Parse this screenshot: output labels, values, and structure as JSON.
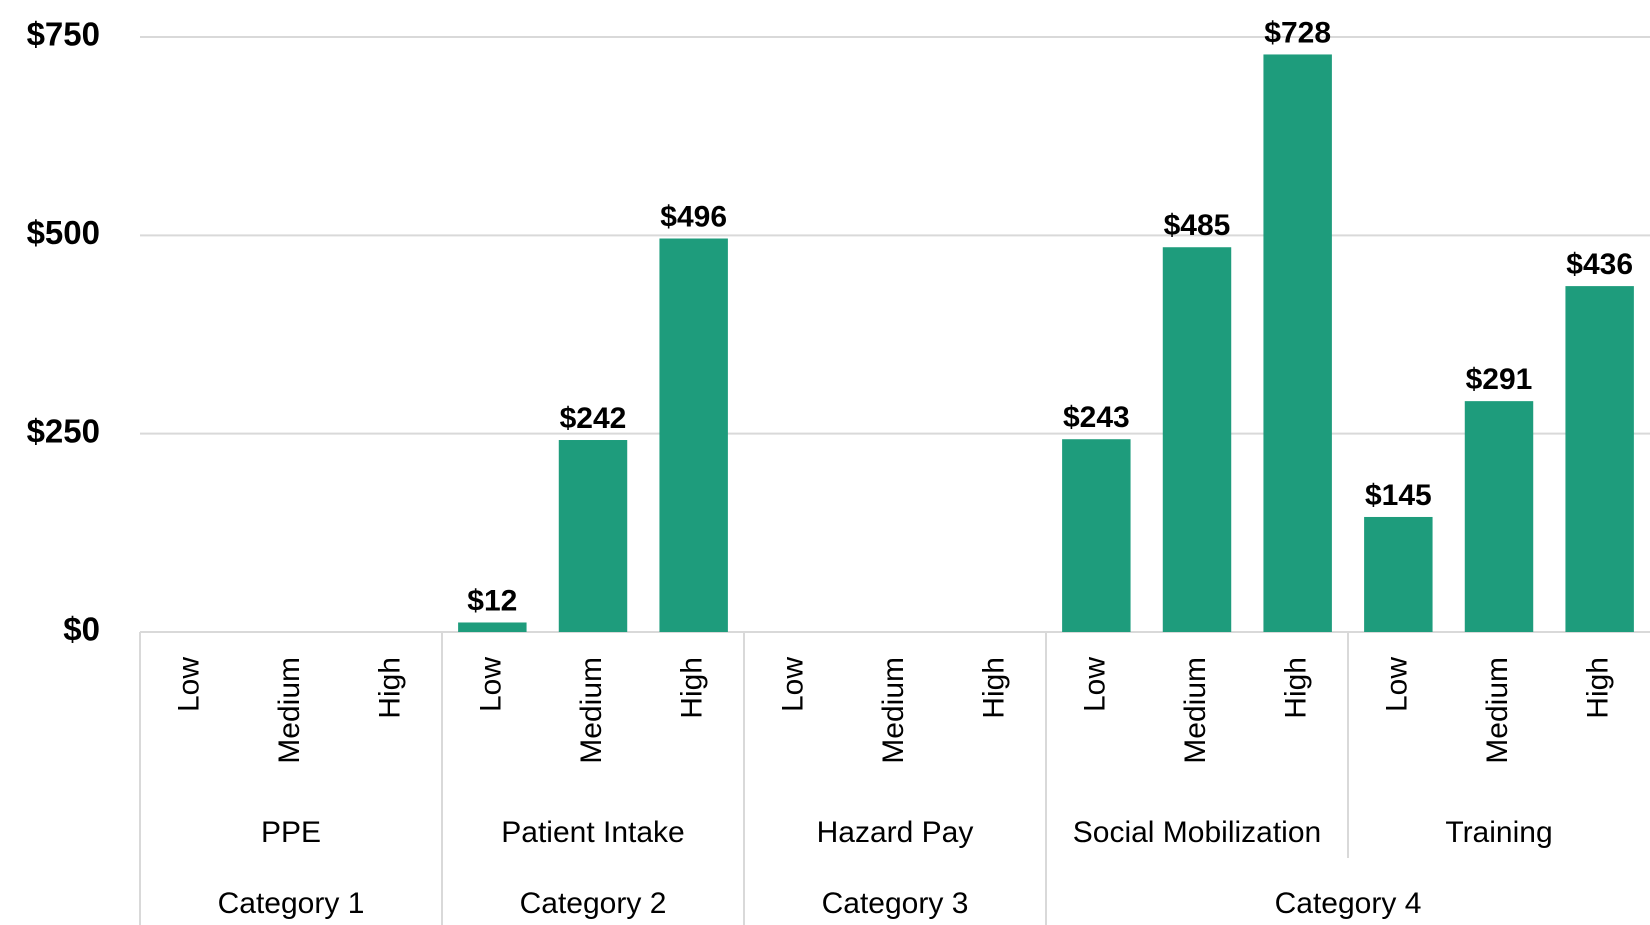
{
  "chart_data": {
    "type": "bar",
    "color": "#1e9c7c",
    "grid": true,
    "ylim": [
      0,
      750
    ],
    "yticks": [
      {
        "value": 0,
        "label": "$0"
      },
      {
        "value": 250,
        "label": "$250"
      },
      {
        "value": 500,
        "label": "$500"
      },
      {
        "value": 750,
        "label": "$750"
      }
    ],
    "groups": [
      {
        "name": "Category 1",
        "subgroups": [
          {
            "name": "PPE",
            "categories": [
              "Low",
              "Medium",
              "High"
            ],
            "values": [
              null,
              null,
              null
            ],
            "value_labels": [
              null,
              null,
              null
            ]
          }
        ]
      },
      {
        "name": "Category 2",
        "subgroups": [
          {
            "name": "Patient Intake",
            "categories": [
              "Low",
              "Medium",
              "High"
            ],
            "values": [
              12,
              242,
              496
            ],
            "value_labels": [
              "$12",
              "$242",
              "$496"
            ]
          }
        ]
      },
      {
        "name": "Category 3",
        "subgroups": [
          {
            "name": "Hazard Pay",
            "categories": [
              "Low",
              "Medium",
              "High"
            ],
            "values": [
              null,
              null,
              null
            ],
            "value_labels": [
              null,
              null,
              null
            ]
          }
        ]
      },
      {
        "name": "Category 4",
        "subgroups": [
          {
            "name": "Social Mobilization",
            "categories": [
              "Low",
              "Medium",
              "High"
            ],
            "values": [
              243,
              485,
              728
            ],
            "value_labels": [
              "$243",
              "$485",
              "$728"
            ]
          },
          {
            "name": "Training",
            "categories": [
              "Low",
              "Medium",
              "High"
            ],
            "values": [
              145,
              291,
              436
            ],
            "value_labels": [
              "$145",
              "$291",
              "$436"
            ]
          }
        ]
      }
    ]
  }
}
